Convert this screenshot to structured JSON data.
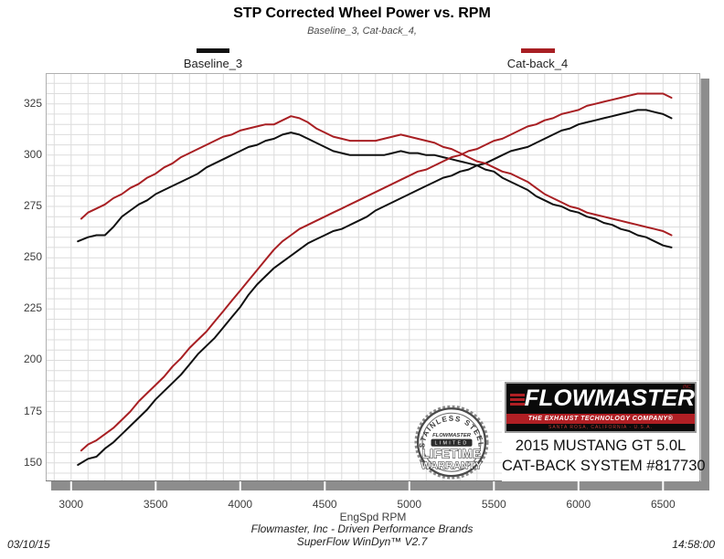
{
  "header": {
    "title": "STP Corrected Wheel Power vs. RPM",
    "subtitle": "Baseline_3, Cat-back_4,"
  },
  "footer": {
    "brand_line": "Flowmaster, Inc - Driven Performance Brands",
    "software_line": "SuperFlow WinDyn™ V2.7",
    "date": "03/10/15",
    "time": "14:58:00"
  },
  "brand_panel": {
    "logo": {
      "name": "FLOWMASTER",
      "inc": "INC.",
      "tagline": "THE EXHAUST TECHNOLOGY COMPANY®",
      "address": "SANTA ROSA, CALIFORNIA - U.S.A."
    },
    "vehicle_line1": "2015 MUSTANG GT 5.0L",
    "vehicle_line2": "CAT-BACK SYSTEM #817730"
  },
  "warranty_badge": {
    "arc_text": "STAINLESS STEEL",
    "brand": "FLOWMASTER",
    "limited": "LIMITED",
    "line1": "LIFETIME",
    "line2": "WARRANTY"
  },
  "colors": {
    "baseline": "#111111",
    "catback": "#a81f23",
    "grid": "#dcdcdc",
    "shadow": "#8d8d8d",
    "plot_border": "#b0b0b0"
  },
  "chart_data": {
    "type": "line",
    "title": "STP Corrected Wheel Power vs. RPM",
    "subtitle": "Baseline_3, Cat-back_4,",
    "xlabel": "EngSpd RPM",
    "ylabel": "",
    "x_range": [
      2850,
      6720
    ],
    "y_range": [
      141,
      340
    ],
    "x_ticks": [
      3000,
      3500,
      4000,
      4500,
      5000,
      5500,
      6000,
      6500
    ],
    "y_ticks": [
      150,
      175,
      200,
      225,
      250,
      275,
      300,
      325
    ],
    "grid": {
      "x_minor_step": 100,
      "y_minor_step": 5,
      "visible": true
    },
    "legend": [
      {
        "label": "Baseline_3",
        "color": "#111111"
      },
      {
        "label": "Cat-back_4",
        "color": "#a81f23"
      }
    ],
    "series": [
      {
        "name": "baseline-3-torque-curve",
        "run": "Baseline_3",
        "color": "#111111",
        "points": [
          [
            3040,
            258
          ],
          [
            3100,
            260
          ],
          [
            3150,
            261
          ],
          [
            3200,
            261
          ],
          [
            3250,
            265
          ],
          [
            3300,
            270
          ],
          [
            3350,
            273
          ],
          [
            3400,
            276
          ],
          [
            3450,
            278
          ],
          [
            3500,
            281
          ],
          [
            3550,
            283
          ],
          [
            3600,
            285
          ],
          [
            3650,
            287
          ],
          [
            3700,
            289
          ],
          [
            3750,
            291
          ],
          [
            3800,
            294
          ],
          [
            3850,
            296
          ],
          [
            3900,
            298
          ],
          [
            3950,
            300
          ],
          [
            4000,
            302
          ],
          [
            4050,
            304
          ],
          [
            4100,
            305
          ],
          [
            4150,
            307
          ],
          [
            4200,
            308
          ],
          [
            4250,
            310
          ],
          [
            4300,
            311
          ],
          [
            4350,
            310
          ],
          [
            4400,
            308
          ],
          [
            4450,
            306
          ],
          [
            4500,
            304
          ],
          [
            4550,
            302
          ],
          [
            4600,
            301
          ],
          [
            4650,
            300
          ],
          [
            4700,
            300
          ],
          [
            4750,
            300
          ],
          [
            4800,
            300
          ],
          [
            4850,
            300
          ],
          [
            4900,
            301
          ],
          [
            4950,
            302
          ],
          [
            5000,
            301
          ],
          [
            5050,
            301
          ],
          [
            5100,
            300
          ],
          [
            5150,
            300
          ],
          [
            5200,
            299
          ],
          [
            5250,
            298
          ],
          [
            5300,
            297
          ],
          [
            5350,
            296
          ],
          [
            5400,
            295
          ],
          [
            5450,
            293
          ],
          [
            5500,
            292
          ],
          [
            5550,
            289
          ],
          [
            5600,
            287
          ],
          [
            5650,
            285
          ],
          [
            5700,
            283
          ],
          [
            5750,
            280
          ],
          [
            5800,
            278
          ],
          [
            5850,
            276
          ],
          [
            5900,
            275
          ],
          [
            5950,
            273
          ],
          [
            6000,
            272
          ],
          [
            6050,
            270
          ],
          [
            6100,
            269
          ],
          [
            6150,
            267
          ],
          [
            6200,
            266
          ],
          [
            6250,
            264
          ],
          [
            6300,
            263
          ],
          [
            6350,
            261
          ],
          [
            6400,
            260
          ],
          [
            6450,
            258
          ],
          [
            6500,
            256
          ],
          [
            6550,
            255
          ]
        ]
      },
      {
        "name": "baseline-3-power",
        "run": "Baseline_3",
        "color": "#111111",
        "points": [
          [
            3040,
            149
          ],
          [
            3100,
            152
          ],
          [
            3150,
            153
          ],
          [
            3200,
            157
          ],
          [
            3250,
            160
          ],
          [
            3300,
            164
          ],
          [
            3350,
            168
          ],
          [
            3400,
            172
          ],
          [
            3450,
            176
          ],
          [
            3500,
            181
          ],
          [
            3550,
            185
          ],
          [
            3600,
            189
          ],
          [
            3650,
            193
          ],
          [
            3700,
            198
          ],
          [
            3750,
            203
          ],
          [
            3800,
            207
          ],
          [
            3850,
            211
          ],
          [
            3900,
            216
          ],
          [
            3950,
            221
          ],
          [
            4000,
            226
          ],
          [
            4050,
            232
          ],
          [
            4100,
            237
          ],
          [
            4150,
            241
          ],
          [
            4200,
            245
          ],
          [
            4250,
            248
          ],
          [
            4300,
            251
          ],
          [
            4350,
            254
          ],
          [
            4400,
            257
          ],
          [
            4450,
            259
          ],
          [
            4500,
            261
          ],
          [
            4550,
            263
          ],
          [
            4600,
            264
          ],
          [
            4650,
            266
          ],
          [
            4700,
            268
          ],
          [
            4750,
            270
          ],
          [
            4800,
            273
          ],
          [
            4850,
            275
          ],
          [
            4900,
            277
          ],
          [
            4950,
            279
          ],
          [
            5000,
            281
          ],
          [
            5050,
            283
          ],
          [
            5100,
            285
          ],
          [
            5150,
            287
          ],
          [
            5200,
            289
          ],
          [
            5250,
            290
          ],
          [
            5300,
            292
          ],
          [
            5350,
            293
          ],
          [
            5400,
            295
          ],
          [
            5450,
            296
          ],
          [
            5500,
            298
          ],
          [
            5550,
            300
          ],
          [
            5600,
            302
          ],
          [
            5650,
            303
          ],
          [
            5700,
            304
          ],
          [
            5750,
            306
          ],
          [
            5800,
            308
          ],
          [
            5850,
            310
          ],
          [
            5900,
            312
          ],
          [
            5950,
            313
          ],
          [
            6000,
            315
          ],
          [
            6050,
            316
          ],
          [
            6100,
            317
          ],
          [
            6150,
            318
          ],
          [
            6200,
            319
          ],
          [
            6250,
            320
          ],
          [
            6300,
            321
          ],
          [
            6350,
            322
          ],
          [
            6400,
            322
          ],
          [
            6450,
            321
          ],
          [
            6500,
            320
          ],
          [
            6550,
            318
          ]
        ]
      },
      {
        "name": "cat-back-4-torque-curve",
        "run": "Cat-back_4",
        "color": "#a81f23",
        "points": [
          [
            3060,
            269
          ],
          [
            3100,
            272
          ],
          [
            3150,
            274
          ],
          [
            3200,
            276
          ],
          [
            3250,
            279
          ],
          [
            3300,
            281
          ],
          [
            3350,
            284
          ],
          [
            3400,
            286
          ],
          [
            3450,
            289
          ],
          [
            3500,
            291
          ],
          [
            3550,
            294
          ],
          [
            3600,
            296
          ],
          [
            3650,
            299
          ],
          [
            3700,
            301
          ],
          [
            3750,
            303
          ],
          [
            3800,
            305
          ],
          [
            3850,
            307
          ],
          [
            3900,
            309
          ],
          [
            3950,
            310
          ],
          [
            4000,
            312
          ],
          [
            4050,
            313
          ],
          [
            4100,
            314
          ],
          [
            4150,
            315
          ],
          [
            4200,
            315
          ],
          [
            4250,
            317
          ],
          [
            4300,
            319
          ],
          [
            4350,
            318
          ],
          [
            4400,
            316
          ],
          [
            4450,
            313
          ],
          [
            4500,
            311
          ],
          [
            4550,
            309
          ],
          [
            4600,
            308
          ],
          [
            4650,
            307
          ],
          [
            4700,
            307
          ],
          [
            4750,
            307
          ],
          [
            4800,
            307
          ],
          [
            4850,
            308
          ],
          [
            4900,
            309
          ],
          [
            4950,
            310
          ],
          [
            5000,
            309
          ],
          [
            5050,
            308
          ],
          [
            5100,
            307
          ],
          [
            5150,
            306
          ],
          [
            5200,
            304
          ],
          [
            5250,
            303
          ],
          [
            5300,
            301
          ],
          [
            5350,
            299
          ],
          [
            5400,
            297
          ],
          [
            5450,
            296
          ],
          [
            5500,
            294
          ],
          [
            5550,
            292
          ],
          [
            5600,
            291
          ],
          [
            5650,
            289
          ],
          [
            5700,
            287
          ],
          [
            5750,
            284
          ],
          [
            5800,
            281
          ],
          [
            5850,
            279
          ],
          [
            5900,
            277
          ],
          [
            5950,
            275
          ],
          [
            6000,
            274
          ],
          [
            6050,
            272
          ],
          [
            6100,
            271
          ],
          [
            6150,
            270
          ],
          [
            6200,
            269
          ],
          [
            6250,
            268
          ],
          [
            6300,
            267
          ],
          [
            6350,
            266
          ],
          [
            6400,
            265
          ],
          [
            6450,
            264
          ],
          [
            6500,
            263
          ],
          [
            6550,
            261
          ]
        ]
      },
      {
        "name": "cat-back-4-power",
        "run": "Cat-back_4",
        "color": "#a81f23",
        "points": [
          [
            3060,
            156
          ],
          [
            3100,
            159
          ],
          [
            3150,
            161
          ],
          [
            3200,
            164
          ],
          [
            3250,
            167
          ],
          [
            3300,
            171
          ],
          [
            3350,
            175
          ],
          [
            3400,
            180
          ],
          [
            3450,
            184
          ],
          [
            3500,
            188
          ],
          [
            3550,
            192
          ],
          [
            3600,
            197
          ],
          [
            3650,
            201
          ],
          [
            3700,
            206
          ],
          [
            3750,
            210
          ],
          [
            3800,
            214
          ],
          [
            3850,
            219
          ],
          [
            3900,
            224
          ],
          [
            3950,
            229
          ],
          [
            4000,
            234
          ],
          [
            4050,
            239
          ],
          [
            4100,
            244
          ],
          [
            4150,
            249
          ],
          [
            4200,
            254
          ],
          [
            4250,
            258
          ],
          [
            4300,
            261
          ],
          [
            4350,
            264
          ],
          [
            4400,
            266
          ],
          [
            4450,
            268
          ],
          [
            4500,
            270
          ],
          [
            4550,
            272
          ],
          [
            4600,
            274
          ],
          [
            4650,
            276
          ],
          [
            4700,
            278
          ],
          [
            4750,
            280
          ],
          [
            4800,
            282
          ],
          [
            4850,
            284
          ],
          [
            4900,
            286
          ],
          [
            4950,
            288
          ],
          [
            5000,
            290
          ],
          [
            5050,
            292
          ],
          [
            5100,
            293
          ],
          [
            5150,
            295
          ],
          [
            5200,
            297
          ],
          [
            5250,
            299
          ],
          [
            5300,
            300
          ],
          [
            5350,
            302
          ],
          [
            5400,
            303
          ],
          [
            5450,
            305
          ],
          [
            5500,
            307
          ],
          [
            5550,
            308
          ],
          [
            5600,
            310
          ],
          [
            5650,
            312
          ],
          [
            5700,
            314
          ],
          [
            5750,
            315
          ],
          [
            5800,
            317
          ],
          [
            5850,
            318
          ],
          [
            5900,
            320
          ],
          [
            5950,
            321
          ],
          [
            6000,
            322
          ],
          [
            6050,
            324
          ],
          [
            6100,
            325
          ],
          [
            6150,
            326
          ],
          [
            6200,
            327
          ],
          [
            6250,
            328
          ],
          [
            6300,
            329
          ],
          [
            6350,
            330
          ],
          [
            6400,
            330
          ],
          [
            6450,
            330
          ],
          [
            6500,
            330
          ],
          [
            6550,
            328
          ]
        ]
      }
    ]
  }
}
